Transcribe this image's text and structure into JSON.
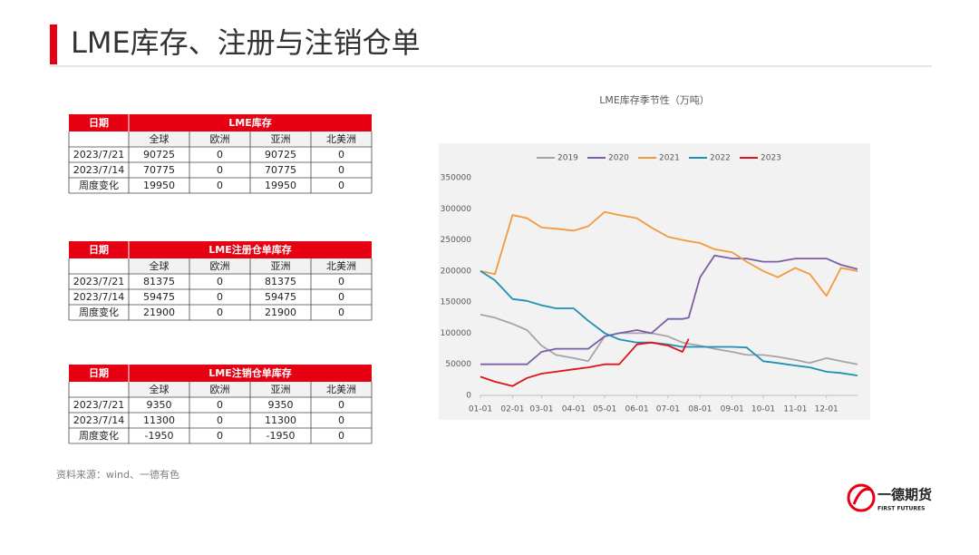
{
  "header": {
    "title": "LME库存、注册与注销仓单"
  },
  "tables": [
    {
      "date_header": "日期",
      "title": "LME库存",
      "columns": [
        "全球",
        "欧洲",
        "亚洲",
        "北美洲"
      ],
      "rows": [
        [
          "2023/7/21",
          "90725",
          "0",
          "90725",
          "0"
        ],
        [
          "2023/7/14",
          "70775",
          "0",
          "70775",
          "0"
        ],
        [
          "周度变化",
          "19950",
          "0",
          "19950",
          "0"
        ]
      ]
    },
    {
      "date_header": "日期",
      "title": "LME注册仓单库存",
      "columns": [
        "全球",
        "欧洲",
        "亚洲",
        "北美洲"
      ],
      "rows": [
        [
          "2023/7/21",
          "81375",
          "0",
          "81375",
          "0"
        ],
        [
          "2023/7/14",
          "59475",
          "0",
          "59475",
          "0"
        ],
        [
          "周度变化",
          "21900",
          "0",
          "21900",
          "0"
        ]
      ]
    },
    {
      "date_header": "日期",
      "title": "LME注销仓单库存",
      "columns": [
        "全球",
        "欧洲",
        "亚洲",
        "北美洲"
      ],
      "rows": [
        [
          "2023/7/21",
          "9350",
          "0",
          "9350",
          "0"
        ],
        [
          "2023/7/14",
          "11300",
          "0",
          "11300",
          "0"
        ],
        [
          "周度变化",
          "-1950",
          "0",
          "-1950",
          "0"
        ]
      ]
    }
  ],
  "source": "资料来源：wind、一德有色",
  "logo": {
    "name": "一德期货",
    "english": "FIRST FUTURES"
  },
  "chart_data": {
    "type": "line",
    "title": "LME库存季节性（万吨）",
    "x": [
      1,
      15,
      32,
      46,
      60,
      74,
      91,
      105,
      121,
      135,
      152,
      166,
      182,
      196,
      202,
      213,
      227,
      244,
      258,
      274,
      288,
      305,
      319,
      335,
      349,
      365
    ],
    "xlim": [
      1,
      365
    ],
    "xticks": [
      {
        "value": 1,
        "label": "01-01"
      },
      {
        "value": 32,
        "label": "02-01"
      },
      {
        "value": 60,
        "label": "03-01"
      },
      {
        "value": 91,
        "label": "04-01"
      },
      {
        "value": 121,
        "label": "05-01"
      },
      {
        "value": 152,
        "label": "06-01"
      },
      {
        "value": 182,
        "label": "07-01"
      },
      {
        "value": 213,
        "label": "08-01"
      },
      {
        "value": 244,
        "label": "09-01"
      },
      {
        "value": 274,
        "label": "10-01"
      },
      {
        "value": 305,
        "label": "11-01"
      },
      {
        "value": 335,
        "label": "12-01"
      }
    ],
    "ylim": [
      0,
      350000
    ],
    "yticks": [
      0,
      50000,
      100000,
      150000,
      200000,
      250000,
      300000,
      350000
    ],
    "grid": false,
    "legend": "top",
    "series": [
      {
        "name": "2019",
        "color": "#a5a5a5",
        "values": [
          130000,
          125000,
          115000,
          105000,
          80000,
          65000,
          60000,
          55000,
          95000,
          100000,
          100000,
          100000,
          95000,
          85000,
          83000,
          80000,
          75000,
          70000,
          65000,
          65000,
          62000,
          57000,
          52000,
          60000,
          55000,
          50000
        ]
      },
      {
        "name": "2020",
        "color": "#7b5ea7",
        "values": [
          50000,
          50000,
          50000,
          50000,
          70000,
          75000,
          75000,
          75000,
          95000,
          100000,
          105000,
          100000,
          123000,
          123000,
          125000,
          190000,
          225000,
          220000,
          220000,
          215000,
          215000,
          220000,
          220000,
          220000,
          210000,
          203000
        ]
      },
      {
        "name": "2021",
        "color": "#f29a3b",
        "values": [
          200000,
          195000,
          290000,
          285000,
          270000,
          268000,
          265000,
          272000,
          295000,
          290000,
          285000,
          270000,
          255000,
          250000,
          248000,
          245000,
          235000,
          230000,
          215000,
          200000,
          190000,
          205000,
          195000,
          160000,
          205000,
          200000
        ]
      },
      {
        "name": "2022",
        "color": "#1f8fb5",
        "values": [
          200000,
          185000,
          155000,
          152000,
          145000,
          140000,
          140000,
          120000,
          100000,
          90000,
          85000,
          85000,
          82000,
          78000,
          78000,
          78000,
          78000,
          78000,
          77000,
          55000,
          52000,
          48000,
          45000,
          38000,
          36000,
          32000
        ]
      },
      {
        "name": "2023",
        "color": "#e0121b",
        "values": [
          30000,
          22000,
          15000,
          28000,
          35000,
          38000,
          42000,
          45000,
          50000,
          50000,
          82000,
          85000,
          80000,
          70000,
          91000,
          null,
          null,
          null,
          null,
          null,
          null,
          null,
          null,
          null,
          null,
          null
        ]
      }
    ]
  }
}
